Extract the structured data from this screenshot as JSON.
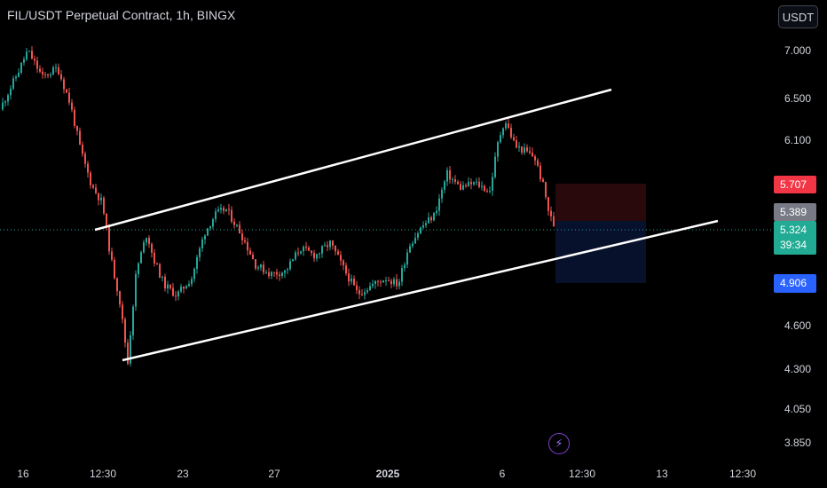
{
  "header": {
    "title": "FIL/USDT Perpetual Contract, 1h, BINGX",
    "unit_label": "USDT"
  },
  "price_axis": {
    "ticks": [
      "7.000",
      "6.500",
      "6.100",
      "4.600",
      "4.300",
      "4.050",
      "3.850"
    ]
  },
  "time_axis": {
    "ticks": [
      {
        "label": "16",
        "bold": false
      },
      {
        "label": "12:30",
        "bold": false
      },
      {
        "label": "23",
        "bold": false
      },
      {
        "label": "27",
        "bold": false
      },
      {
        "label": "2025",
        "bold": true
      },
      {
        "label": "6",
        "bold": false
      },
      {
        "label": "12:30",
        "bold": false
      },
      {
        "label": "13",
        "bold": false
      },
      {
        "label": "12:30",
        "bold": false
      }
    ]
  },
  "badges": {
    "stop": {
      "value": "5.707",
      "color": "#f23645"
    },
    "prev": {
      "value": "5.389",
      "color": "#787b86"
    },
    "last": {
      "value": "5.324",
      "countdown": "39:34",
      "color": "#22ab94"
    },
    "target": {
      "value": "4.906",
      "color": "#2962ff"
    }
  },
  "colors": {
    "up": "#26a69a",
    "down": "#ef5350",
    "channel": "#ffffff"
  },
  "chart_data": {
    "type": "candlestick",
    "symbol": "FIL/USDT Perpetual Contract",
    "interval": "1h",
    "exchange": "BINGX",
    "y_scale": "log",
    "y_ticks": [
      7.0,
      6.5,
      6.1,
      4.6,
      4.3,
      4.05,
      3.85
    ],
    "last_price": 5.324,
    "price_path": [
      {
        "x": 0.0,
        "p": 6.4
      },
      {
        "x": 0.8,
        "p": 6.75
      },
      {
        "x": 1.3,
        "p": 7.0
      },
      {
        "x": 2.0,
        "p": 6.72
      },
      {
        "x": 2.7,
        "p": 6.82
      },
      {
        "x": 3.3,
        "p": 6.45
      },
      {
        "x": 3.8,
        "p": 6.0
      },
      {
        "x": 4.3,
        "p": 5.7
      },
      {
        "x": 4.8,
        "p": 5.55
      },
      {
        "x": 5.2,
        "p": 5.1
      },
      {
        "x": 5.6,
        "p": 4.8
      },
      {
        "x": 6.0,
        "p": 4.35
      },
      {
        "x": 6.4,
        "p": 5.0
      },
      {
        "x": 6.9,
        "p": 5.3
      },
      {
        "x": 7.2,
        "p": 5.1
      },
      {
        "x": 7.7,
        "p": 4.9
      },
      {
        "x": 8.3,
        "p": 4.82
      },
      {
        "x": 9.0,
        "p": 4.95
      },
      {
        "x": 9.6,
        "p": 5.3
      },
      {
        "x": 10.1,
        "p": 5.45
      },
      {
        "x": 10.6,
        "p": 5.5
      },
      {
        "x": 11.3,
        "p": 5.3
      },
      {
        "x": 12.0,
        "p": 5.05
      },
      {
        "x": 12.7,
        "p": 4.98
      },
      {
        "x": 13.4,
        "p": 5.0
      },
      {
        "x": 14.1,
        "p": 5.18
      },
      {
        "x": 14.8,
        "p": 5.12
      },
      {
        "x": 15.5,
        "p": 5.22
      },
      {
        "x": 16.2,
        "p": 5.0
      },
      {
        "x": 16.8,
        "p": 4.83
      },
      {
        "x": 17.5,
        "p": 4.9
      },
      {
        "x": 18.1,
        "p": 4.95
      },
      {
        "x": 18.7,
        "p": 4.9
      },
      {
        "x": 19.2,
        "p": 5.2
      },
      {
        "x": 19.8,
        "p": 5.35
      },
      {
        "x": 20.4,
        "p": 5.45
      },
      {
        "x": 21.0,
        "p": 5.8
      },
      {
        "x": 21.6,
        "p": 5.68
      },
      {
        "x": 22.3,
        "p": 5.72
      },
      {
        "x": 23.0,
        "p": 5.65
      },
      {
        "x": 23.4,
        "p": 6.1
      },
      {
        "x": 23.7,
        "p": 6.3
      },
      {
        "x": 24.2,
        "p": 6.05
      },
      {
        "x": 24.7,
        "p": 6.0
      },
      {
        "x": 25.1,
        "p": 5.95
      },
      {
        "x": 25.5,
        "p": 5.7
      },
      {
        "x": 25.8,
        "p": 5.45
      },
      {
        "x": 26.1,
        "p": 5.324
      }
    ],
    "channel": {
      "upper": [
        {
          "x": 4.3,
          "p": 5.35
        },
        {
          "x": 28.6,
          "p": 6.55
        }
      ],
      "lower": [
        {
          "x": 5.7,
          "p": 4.39
        },
        {
          "x": 33.6,
          "p": 5.4
        }
      ]
    },
    "position": {
      "side": "short",
      "entry": 5.389,
      "stop": 5.707,
      "target": 4.906
    }
  }
}
